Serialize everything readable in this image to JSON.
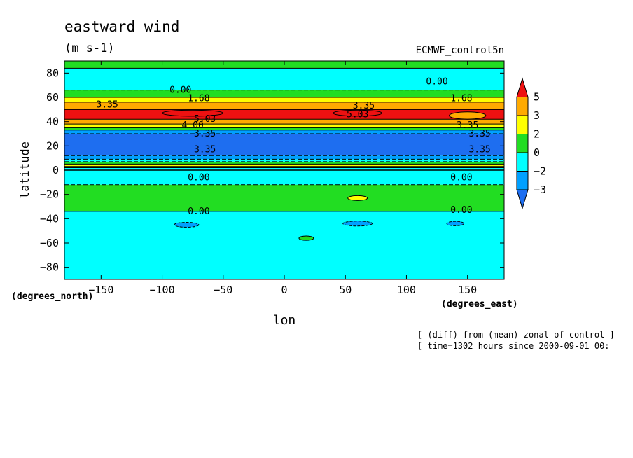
{
  "chart_data": {
    "type": "heatmap",
    "title": "eastward wind",
    "units": "(m s-1)",
    "dataset": "ECMWF_control5n",
    "xlabel": "lon",
    "ylabel": "latitude",
    "x_unit_label": "(degrees_east)",
    "y_unit_label": "(degrees_north)",
    "xlim": [
      -180,
      180
    ],
    "ylim": [
      -90,
      90
    ],
    "x_ticks": [
      -150,
      -100,
      -50,
      0,
      50,
      100,
      150
    ],
    "x_tick_labels": [
      "−150",
      "−100",
      "−50",
      "0",
      "50",
      "100",
      "150"
    ],
    "y_ticks": [
      -80,
      -60,
      -40,
      -20,
      0,
      20,
      40,
      60,
      80
    ],
    "y_tick_labels": [
      "−80",
      "−60",
      "−40",
      "−20",
      "0",
      "20",
      "40",
      "60",
      "80"
    ],
    "colorbar": {
      "labels": [
        "5",
        "3",
        "2",
        "0",
        "−2",
        "−3"
      ],
      "levels": [
        -3,
        -2,
        0,
        2,
        3,
        5
      ],
      "colors": [
        "#1e6ef0",
        "#00a0ff",
        "#00ffff",
        "#22dd22",
        "#ffff00",
        "#ffaa00",
        "#ee1111"
      ]
    },
    "bands": [
      {
        "lat_top": 90,
        "lat_bottom": 84,
        "class": 3
      },
      {
        "lat_top": 84,
        "lat_bottom": 66,
        "class": 2
      },
      {
        "lat_top": 66,
        "lat_bottom": 60,
        "class": 3
      },
      {
        "lat_top": 60,
        "lat_bottom": 56,
        "class": 4
      },
      {
        "lat_top": 56,
        "lat_bottom": 50,
        "class": 5
      },
      {
        "lat_top": 50,
        "lat_bottom": 42,
        "class": 6
      },
      {
        "lat_top": 42,
        "lat_bottom": 38,
        "class": 5
      },
      {
        "lat_top": 38,
        "lat_bottom": 35,
        "class": 4
      },
      {
        "lat_top": 35,
        "lat_bottom": 33,
        "class": 3
      },
      {
        "lat_top": 33,
        "lat_bottom": 30,
        "class": 1
      },
      {
        "lat_top": 30,
        "lat_bottom": 12,
        "class": 0
      },
      {
        "lat_top": 12,
        "lat_bottom": 9,
        "class": 1
      },
      {
        "lat_top": 9,
        "lat_bottom": 7,
        "class": 2
      },
      {
        "lat_top": 7,
        "lat_bottom": 5,
        "class": 3
      },
      {
        "lat_top": 5,
        "lat_bottom": 3,
        "class": 4
      },
      {
        "lat_top": 3,
        "lat_bottom": 2,
        "class": 3
      },
      {
        "lat_top": 2,
        "lat_bottom": 0,
        "class": 2
      },
      {
        "lat_top": 0,
        "lat_bottom": -12,
        "class": 2
      },
      {
        "lat_top": -12,
        "lat_bottom": -34,
        "class": 3
      },
      {
        "lat_top": -34,
        "lat_bottom": -90,
        "class": 2
      }
    ],
    "patches": [
      {
        "lon": -75,
        "lat": 47,
        "rx": 25,
        "ry": 2.5,
        "class": 6
      },
      {
        "lon": 60,
        "lat": 47,
        "rx": 20,
        "ry": 2.5,
        "class": 6
      },
      {
        "lon": 150,
        "lat": 45,
        "rx": 15,
        "ry": 3,
        "class": 5
      },
      {
        "lon": 60,
        "lat": -23,
        "rx": 8,
        "ry": 2,
        "class": 4
      },
      {
        "lon": -80,
        "lat": -45,
        "rx": 10,
        "ry": 2,
        "class": 1
      },
      {
        "lon": 60,
        "lat": -44,
        "rx": 12,
        "ry": 2,
        "class": 1
      },
      {
        "lon": 140,
        "lat": -44,
        "rx": 7,
        "ry": 1.8,
        "class": 1
      },
      {
        "lon": 18,
        "lat": -56,
        "rx": 6,
        "ry": 1.8,
        "class": 3
      }
    ],
    "contour_labels": [
      {
        "text": "0.00",
        "lon": 125,
        "lat": 73
      },
      {
        "text": "0.00",
        "lon": -85,
        "lat": 66
      },
      {
        "text": "1.68",
        "lon": -70,
        "lat": 59
      },
      {
        "text": "1.68",
        "lon": 145,
        "lat": 59
      },
      {
        "text": "3.35",
        "lon": -145,
        "lat": 54
      },
      {
        "text": "3.35",
        "lon": 65,
        "lat": 53
      },
      {
        "text": "5.03",
        "lon": -65,
        "lat": 42
      },
      {
        "text": "5.03",
        "lon": 60,
        "lat": 46
      },
      {
        "text": "4.00",
        "lon": -75,
        "lat": 37
      },
      {
        "text": "3.35",
        "lon": -65,
        "lat": 30
      },
      {
        "text": "3.35",
        "lon": 160,
        "lat": 30
      },
      {
        "text": "3.35",
        "lon": -65,
        "lat": 17
      },
      {
        "text": "3.35",
        "lon": 160,
        "lat": 17
      },
      {
        "text": "3.35",
        "lon": 150,
        "lat": 37
      },
      {
        "text": "0.00",
        "lon": -70,
        "lat": -6
      },
      {
        "text": "0.00",
        "lon": 145,
        "lat": -6
      },
      {
        "text": "0.00",
        "lon": -70,
        "lat": -34
      },
      {
        "text": "0.00",
        "lon": 145,
        "lat": -33
      }
    ],
    "annotations": [
      "[ (diff) from (mean) zonal of control ]",
      "[ time=1302 hours since 2000-09-01 00:"
    ]
  }
}
